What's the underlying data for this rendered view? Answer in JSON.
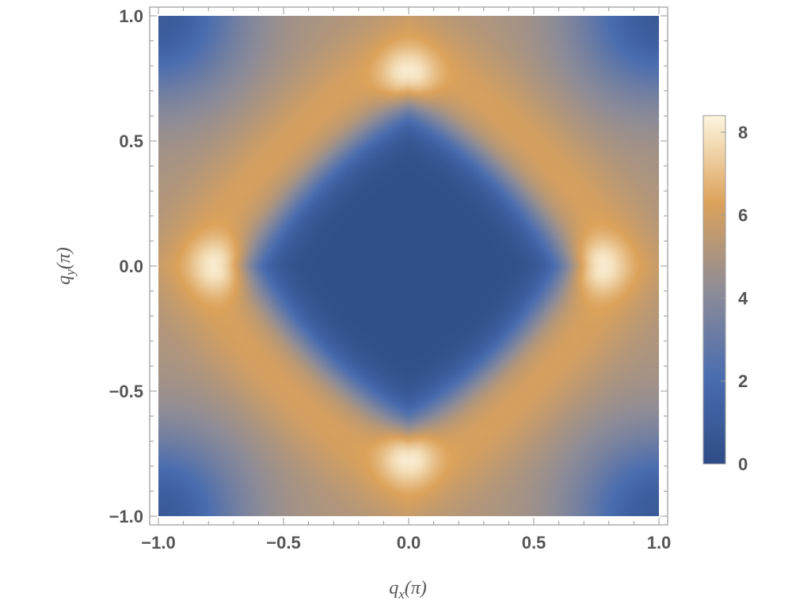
{
  "chart_data": {
    "type": "heatmap",
    "title": "",
    "xlabel": "q_x(π)",
    "ylabel": "q_y(π)",
    "xlabel_parts": {
      "base": "q",
      "sub": "x",
      "unit": "(π)"
    },
    "ylabel_parts": {
      "base": "q",
      "sub": "y",
      "unit": "(π)"
    },
    "xlim": [
      -1.0,
      1.0
    ],
    "ylim": [
      -1.0,
      1.0
    ],
    "x_ticks": [
      -1.0,
      -0.5,
      0.0,
      0.5,
      1.0
    ],
    "y_ticks": [
      -1.0,
      -0.5,
      0.0,
      0.5,
      1.0
    ],
    "x_tick_labels": [
      "−1.0",
      "−0.5",
      "0.0",
      "0.5",
      "1.0"
    ],
    "y_tick_labels": [
      "−1.0",
      "−0.5",
      "0.0",
      "0.5",
      "1.0"
    ],
    "colorbar": {
      "range": [
        0,
        8.4
      ],
      "ticks": [
        0,
        2,
        4,
        6,
        8
      ],
      "tick_labels": [
        "0",
        "2",
        "4",
        "6",
        "8"
      ],
      "colors": [
        "#2e4c86",
        "#4a6db0",
        "#8e8c97",
        "#dca25a",
        "#fdf6df"
      ]
    },
    "grid": false,
    "legend": "colorbar-right",
    "z_samples": {
      "description_points": [
        {
          "x": 0.0,
          "y": 0.0,
          "z": 0.2
        },
        {
          "x": 0.0,
          "y": 0.75,
          "z": 8.3
        },
        {
          "x": 0.0,
          "y": -0.75,
          "z": 8.3
        },
        {
          "x": 0.75,
          "y": 0.0,
          "z": 8.3
        },
        {
          "x": -0.75,
          "y": 0.0,
          "z": 8.3
        },
        {
          "x": 1.0,
          "y": 1.0,
          "z": 1.0
        },
        {
          "x": -1.0,
          "y": 1.0,
          "z": 1.0
        },
        {
          "x": 1.0,
          "y": -1.0,
          "z": 1.0
        },
        {
          "x": -1.0,
          "y": -1.0,
          "z": 1.0
        },
        {
          "x": 0.6,
          "y": 0.6,
          "z": 5.0
        }
      ]
    }
  }
}
